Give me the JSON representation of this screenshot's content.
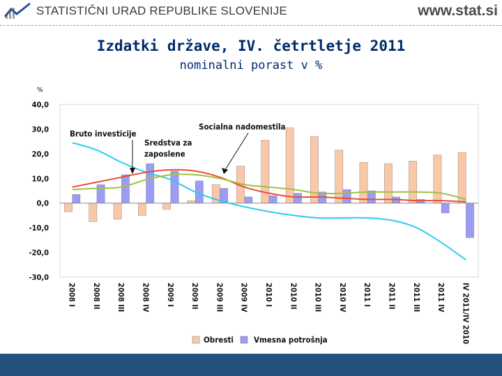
{
  "header": {
    "organization": "STATISTIČNI URAD REPUBLIKE SLOVENIJE",
    "website": "www.stat.si",
    "colors": {
      "logo_blue": "#2b4f8c",
      "logo_grey": "#9aa0a6"
    }
  },
  "slide": {
    "title": "Izdatki države, IV. četrtletje 2011",
    "subtitle": "nominalni porast v %"
  },
  "chart_data": {
    "type": "bar",
    "ylabel": "%",
    "ylim": [
      -30,
      40
    ],
    "yticks": [
      "40,0",
      "30,0",
      "20,0",
      "10,0",
      "0,0",
      "-10,0",
      "-20,0",
      "-30,0"
    ],
    "ytick_values": [
      40,
      30,
      20,
      10,
      0,
      -10,
      -20,
      -30
    ],
    "categories": [
      "2008 I",
      "2008 II",
      "2008 III",
      "2008 IV",
      "2009 I",
      "2009 II",
      "2009 III",
      "2009 IV",
      "2010 I",
      "2010 II",
      "2010 III",
      "2010 IV",
      "2011 I",
      "2011 II",
      "2011 III",
      "2011 IV",
      "IV 2011/IV 2010"
    ],
    "grid": false,
    "series": [
      {
        "name": "Obresti",
        "kind": "bar",
        "color": "#f9c8a8",
        "values": [
          -3.5,
          -7.5,
          -6.5,
          -5,
          -2.5,
          1,
          7.5,
          15,
          25.5,
          30.5,
          27,
          21.5,
          16.5,
          16,
          17,
          19.5,
          20.5
        ]
      },
      {
        "name": "Vmesna potrošnja",
        "kind": "bar",
        "color": "#9c9cf4",
        "values": [
          3.5,
          7.5,
          11.5,
          16,
          13,
          9,
          6,
          2.5,
          3,
          4,
          4.5,
          5.5,
          5,
          2.5,
          1.5,
          -4,
          -14
        ]
      },
      {
        "name": "Bruto investicije",
        "kind": "line",
        "color": "#2ecbf0",
        "values": [
          24.5,
          21.5,
          16.5,
          12.5,
          9.5,
          4.5,
          1,
          -1.5,
          -3.5,
          -5,
          -6,
          -6,
          -6,
          -7,
          -10,
          -16,
          -23
        ]
      },
      {
        "name": "Sredstva za zaposlene",
        "kind": "line",
        "color": "#e84d3a",
        "values": [
          6.5,
          8.5,
          10.5,
          12.5,
          13.5,
          13,
          10.5,
          6.5,
          4,
          2.5,
          2.5,
          2,
          1.5,
          1.5,
          1,
          1,
          0.5
        ]
      },
      {
        "name": "Socialna nadomestila",
        "kind": "line",
        "color": "#9ec23c",
        "values": [
          5.5,
          6,
          6.5,
          9.5,
          11.5,
          11.5,
          10,
          7.5,
          6.5,
          5.5,
          4,
          4,
          4.5,
          4.5,
          4.5,
          4,
          1.5
        ]
      }
    ],
    "annotations": [
      "Bruto investicije",
      "Sredstva za zaposlene",
      "Socialna nadomestila"
    ],
    "legend": {
      "placement": "bottom",
      "entries": [
        "Obresti",
        "Vmesna potrošnja"
      ]
    }
  }
}
